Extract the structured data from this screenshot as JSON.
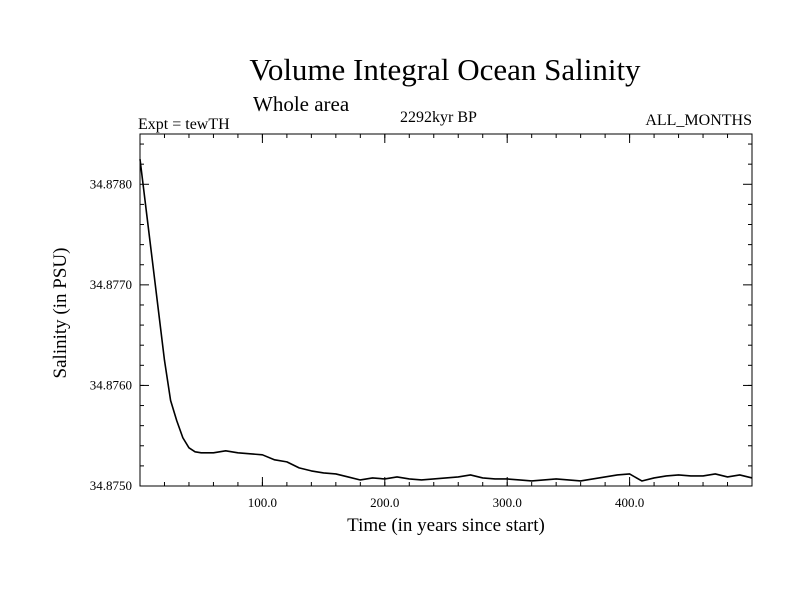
{
  "chart_data": {
    "type": "line",
    "title": "Volume Integral Ocean Salinity",
    "subtitle": "Whole area",
    "left_annotation": "Expt = tewTH",
    "center_annotation": "2292kyr BP",
    "right_annotation": "ALL_MONTHS",
    "xlabel": "Time (in years since start)",
    "ylabel": "Salinity (in PSU)",
    "xlim": [
      0,
      500
    ],
    "ylim": [
      34.875,
      34.8785
    ],
    "x_ticks": [
      100,
      200,
      300,
      400
    ],
    "x_tick_labels": [
      "100.0",
      "200.0",
      "300.0",
      "400.0"
    ],
    "y_ticks": [
      34.875,
      34.876,
      34.877,
      34.878
    ],
    "y_tick_labels": [
      "34.8750",
      "34.8760",
      "34.8770",
      "34.8780"
    ],
    "grid": false,
    "series": [
      {
        "name": "Salinity",
        "color": "#000000",
        "x": [
          0,
          3,
          6,
          10,
          15,
          20,
          25,
          30,
          35,
          40,
          45,
          50,
          60,
          70,
          80,
          90,
          100,
          110,
          120,
          130,
          140,
          150,
          160,
          170,
          180,
          190,
          200,
          210,
          220,
          230,
          240,
          250,
          260,
          270,
          280,
          290,
          300,
          310,
          320,
          330,
          340,
          350,
          360,
          370,
          380,
          390,
          400,
          410,
          420,
          430,
          440,
          450,
          460,
          470,
          480,
          490,
          500
        ],
        "values": [
          34.87825,
          34.87795,
          34.87765,
          34.87725,
          34.87675,
          34.87625,
          34.87585,
          34.87565,
          34.87548,
          34.87538,
          34.87534,
          34.87533,
          34.87533,
          34.87535,
          34.87533,
          34.87532,
          34.87531,
          34.87526,
          34.87524,
          34.87518,
          34.87515,
          34.87513,
          34.87512,
          34.87509,
          34.87506,
          34.87508,
          34.87507,
          34.87509,
          34.87507,
          34.87506,
          34.87507,
          34.87508,
          34.87509,
          34.87511,
          34.87508,
          34.87507,
          34.87507,
          34.87506,
          34.87505,
          34.87506,
          34.87507,
          34.87506,
          34.87505,
          34.87507,
          34.87509,
          34.87511,
          34.87512,
          34.87505,
          34.87508,
          34.8751,
          34.87511,
          34.8751,
          34.8751,
          34.87512,
          34.87509,
          34.87511,
          34.87508
        ]
      }
    ]
  }
}
